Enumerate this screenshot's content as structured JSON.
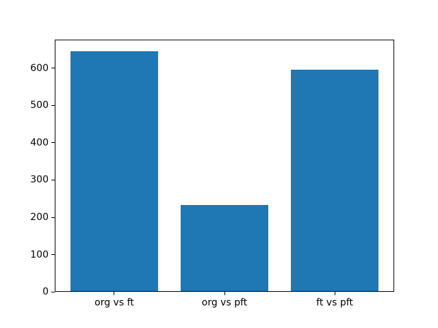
{
  "chart_data": {
    "type": "bar",
    "title": "",
    "xlabel": "",
    "ylabel": "",
    "categories": [
      "org vs ft",
      "org vs pft",
      "ft vs pft"
    ],
    "values": [
      645,
      233,
      595
    ],
    "yticks": [
      0,
      100,
      200,
      300,
      400,
      500,
      600
    ],
    "ylim": [
      0,
      677.25
    ],
    "xlim": [
      -0.54,
      2.54
    ],
    "bar_width_units": 0.8,
    "bar_color": "#1f77b4",
    "axis_color": "#000000",
    "text_color": "#000000",
    "background_color": "#ffffff",
    "grid": false,
    "legend": null
  }
}
